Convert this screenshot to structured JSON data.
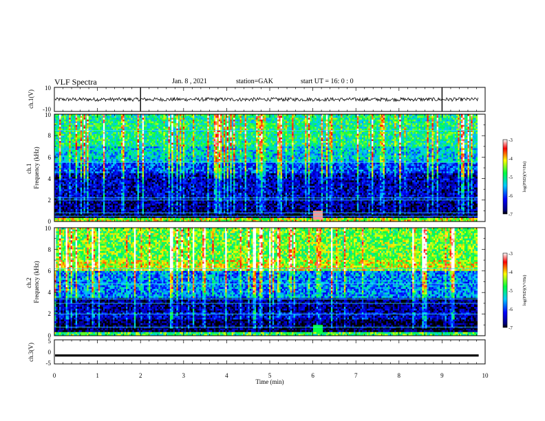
{
  "header": {
    "title": "VLF Spectra",
    "date": "Jan. 8 , 2021",
    "station": "station=GAK",
    "start": "start UT = 16: 0 : 0"
  },
  "chart_data": [
    {
      "type": "line",
      "panel": "ch1-waveform",
      "ylabel": "ch.1(V)",
      "ylim": [
        -10,
        10
      ],
      "yticks": [
        "10",
        "-10"
      ],
      "xlim": [
        0,
        10
      ],
      "level": 0.0,
      "amplitude": 1.5,
      "spikes": [
        2.0,
        9.0
      ]
    },
    {
      "type": "heatmap",
      "panel": "ch1-spectrogram",
      "ylabel": "ch.1\nFrequency (kHz)",
      "ylim": [
        0,
        10
      ],
      "yticks": [
        "0",
        "2",
        "4",
        "6",
        "8",
        "10"
      ],
      "xlim": [
        0,
        9.82
      ],
      "colorbar": {
        "label": "log(PSD)(V²/Hz)",
        "ticks": [
          "-3",
          "-4",
          "-5",
          "-6",
          "-7"
        ],
        "range": [
          -7,
          -3
        ]
      },
      "bands": [
        {
          "f": [
            0,
            0.4
          ],
          "level": -4.3
        },
        {
          "f": [
            0.4,
            1.0
          ],
          "level": -6.9
        },
        {
          "f": [
            1.0,
            2.0
          ],
          "level": -6.7
        },
        {
          "f": [
            2.0,
            4.5
          ],
          "level": -6.5
        },
        {
          "f": [
            4.5,
            5.5
          ],
          "level": -6.0
        },
        {
          "f": [
            5.5,
            7.0
          ],
          "level": -5.4
        },
        {
          "f": [
            7.0,
            10.0
          ],
          "level": -5.0
        }
      ],
      "lines_khz": [
        0.5,
        0.8,
        2.0,
        2.2,
        5.5,
        8.5
      ],
      "event": {
        "t": 6.1,
        "f": [
          0.2,
          1.0
        ],
        "level": -3.2
      }
    },
    {
      "type": "heatmap",
      "panel": "ch2-spectrogram",
      "ylabel": "ch.2\nFrequency (kHz)",
      "ylim": [
        0,
        10
      ],
      "yticks": [
        "0",
        "2",
        "4",
        "6",
        "8",
        "10"
      ],
      "xlim": [
        0,
        9.82
      ],
      "colorbar": {
        "label": "log(PSD)(V²/Hz)",
        "ticks": [
          "-3",
          "-4",
          "-5",
          "-6",
          "-7"
        ],
        "range": [
          -7,
          -3
        ]
      },
      "bands": [
        {
          "f": [
            0,
            0.4
          ],
          "level": -4.8
        },
        {
          "f": [
            0.4,
            1.5
          ],
          "level": -6.9
        },
        {
          "f": [
            1.5,
            2.2
          ],
          "level": -6.4
        },
        {
          "f": [
            2.2,
            3.5
          ],
          "level": -6.7
        },
        {
          "f": [
            3.5,
            6.0
          ],
          "level": -5.7
        },
        {
          "f": [
            6.0,
            7.0
          ],
          "level": -4.3
        },
        {
          "f": [
            7.0,
            10.0
          ],
          "level": -4.6
        }
      ],
      "lines_khz": [
        0.8,
        2.0,
        3.0,
        3.4,
        4.8,
        6.2
      ],
      "event": {
        "t": 6.1,
        "f": [
          0.3,
          1.0
        ],
        "level": -4.8
      }
    },
    {
      "type": "line",
      "panel": "ch3-waveform",
      "ylabel": "ch.3(V)",
      "ylim": [
        -5,
        5
      ],
      "yticks": [
        "5",
        "0",
        "-5"
      ],
      "xlim": [
        0,
        10
      ],
      "level": -1.5,
      "amplitude": 0.15
    }
  ],
  "xaxis": {
    "label": "Time (min)",
    "ticks": [
      "0",
      "1",
      "2",
      "3",
      "4",
      "5",
      "6",
      "7",
      "8",
      "9",
      "10"
    ]
  }
}
